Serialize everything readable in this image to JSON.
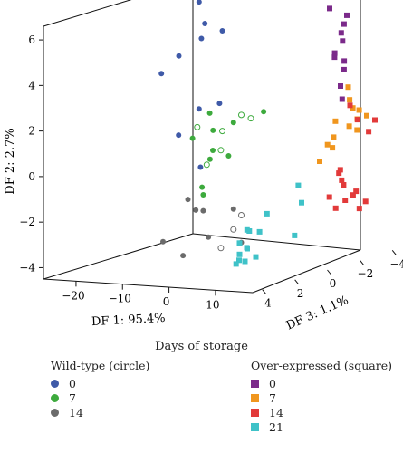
{
  "chart_data": {
    "type": "scatter3d",
    "axes": {
      "x": {
        "label": "DF 1: 95.4%",
        "ticks": [
          -20,
          -10,
          0,
          10
        ],
        "range": [
          -27,
          18
        ]
      },
      "y": {
        "label": "DF 2: 2.7%",
        "ticks": [
          -4,
          -2,
          0,
          2,
          4,
          6
        ],
        "range": [
          -4.5,
          6.6
        ]
      },
      "z": {
        "label": "DF 3: 1.1%",
        "ticks": [
          4,
          2,
          0,
          -2,
          -4
        ],
        "range": [
          4.6,
          -4.6
        ]
      }
    },
    "legend_title": "Days of storage",
    "groups": [
      {
        "name": "Wild-type (circle)",
        "marker": "circle",
        "entries": [
          {
            "label": "0",
            "color": "#3f5aa8"
          },
          {
            "label": "7",
            "color": "#3daa3d"
          },
          {
            "label": "14",
            "color": "#6b6b6b"
          }
        ]
      },
      {
        "name": "Over-expressed (square)",
        "marker": "square",
        "entries": [
          {
            "label": "0",
            "color": "#7b2a8a"
          },
          {
            "label": "7",
            "color": "#f0961e"
          },
          {
            "label": "14",
            "color": "#e23a3a"
          },
          {
            "label": "21",
            "color": "#3fc2c8"
          }
        ]
      }
    ],
    "series": [
      {
        "group": "Wild-type (circle)",
        "day": "0",
        "marker": "circle",
        "color": "#3f5aa8",
        "points": [
          [
            -11,
            6.8,
            -0.4
          ],
          [
            -10.5,
            5.2,
            -0.4
          ],
          [
            -8,
            6.0,
            0.1
          ],
          [
            -6,
            5.6,
            -0.4
          ],
          [
            -15,
            4.4,
            -0.3
          ],
          [
            -17,
            3.7,
            0.2
          ],
          [
            -11,
            2.1,
            -0.4
          ],
          [
            -8,
            2.3,
            -0.8
          ],
          [
            -14,
            1.0,
            0.0
          ],
          [
            -10,
            -0.4,
            -0.2
          ]
        ]
      },
      {
        "group": "Wild-type (circle)",
        "day": "7",
        "marker": "circle",
        "color": "#3daa3d",
        "points": [
          [
            -8,
            2.0,
            -0.2
          ],
          [
            -11,
            0.9,
            0.0
          ],
          [
            -8,
            1.2,
            -0.4
          ],
          [
            -5,
            1.5,
            -0.8
          ],
          [
            -2,
            1.8,
            -1.8
          ],
          [
            -9,
            -0.1,
            -0.5
          ],
          [
            -7,
            0.4,
            -0.1
          ],
          [
            -5,
            0.1,
            -0.5
          ],
          [
            -10,
            -1.3,
            -0.3
          ],
          [
            -8,
            -1.5,
            0.2
          ]
        ]
      },
      {
        "group": "Wild-type (circle)",
        "day": "7",
        "marker": "circle-open",
        "color": "#3daa3d",
        "points": [
          [
            -10,
            1.4,
            0.0
          ],
          [
            -6,
            1.2,
            -0.4
          ],
          [
            -4,
            1.8,
            -1.0
          ],
          [
            -3,
            1.6,
            -1.3
          ],
          [
            -7,
            0.3,
            -0.6
          ],
          [
            -9,
            -0.3,
            -0.3
          ]
        ]
      },
      {
        "group": "Wild-type (circle)",
        "day": "14",
        "marker": "circle",
        "color": "#6b6b6b",
        "points": [
          [
            -12,
            -1.8,
            0.0
          ],
          [
            -11,
            -2.3,
            -0.2
          ],
          [
            -8,
            -2.2,
            0.2
          ],
          [
            -5,
            -2.3,
            -0.8
          ],
          [
            -9,
            -3.5,
            -0.4
          ],
          [
            -17,
            -3.7,
            0.1
          ],
          [
            -12,
            -4.2,
            0.3
          ],
          [
            -4,
            -3.8,
            -1.0
          ]
        ]
      },
      {
        "group": "Wild-type (circle)",
        "day": "14",
        "marker": "circle-open",
        "color": "#6b6b6b",
        "points": [
          [
            -4,
            -2.6,
            -1.0
          ],
          [
            -5,
            -3.2,
            -0.8
          ],
          [
            -7,
            -4.0,
            -0.6
          ]
        ]
      },
      {
        "group": "Over-expressed (square)",
        "day": "0",
        "marker": "square",
        "color": "#7b2a8a",
        "points": [
          [
            8,
            6.2,
            -3.0
          ],
          [
            11,
            5.9,
            -3.2
          ],
          [
            9,
            5.4,
            -3.6
          ],
          [
            8,
            4.6,
            -3.8
          ],
          [
            8,
            4.0,
            -3.3
          ],
          [
            9,
            3.4,
            -3.6
          ],
          [
            10,
            2.8,
            -3.1
          ],
          [
            10,
            2.2,
            -3.2
          ],
          [
            7,
            4.1,
            -3.6
          ],
          [
            8,
            3.7,
            -3.9
          ],
          [
            7,
            4.9,
            -4.0
          ]
        ]
      },
      {
        "group": "Over-expressed (square)",
        "day": "7",
        "marker": "square",
        "color": "#f0961e",
        "points": [
          [
            12,
            2.8,
            -3.0
          ],
          [
            13,
            2.3,
            -2.8
          ],
          [
            13,
            1.9,
            -3.0
          ],
          [
            15,
            1.5,
            -2.7
          ],
          [
            16,
            1.1,
            -2.4
          ],
          [
            15,
            1.3,
            -2.2
          ],
          [
            11,
            1.4,
            -2.5
          ],
          [
            12,
            0.8,
            -2.1
          ],
          [
            10,
            0.4,
            -2.3
          ],
          [
            9,
            -0.3,
            -2.1
          ],
          [
            10,
            0.2,
            -2.6
          ],
          [
            14,
            1.8,
            -3.1
          ],
          [
            16,
            1.6,
            -3.0
          ]
        ]
      },
      {
        "group": "Over-expressed (square)",
        "day": "14",
        "marker": "square",
        "color": "#e23a3a",
        "points": [
          [
            15,
            0.8,
            -3.4
          ],
          [
            16,
            1.3,
            -3.5
          ],
          [
            14,
            1.4,
            -3.0
          ],
          [
            11,
            1.9,
            -3.4
          ],
          [
            10,
            -1.0,
            -3.0
          ],
          [
            11,
            -0.8,
            -2.8
          ],
          [
            12,
            -1.2,
            -2.6
          ],
          [
            11,
            -1.5,
            -3.0
          ],
          [
            13,
            -1.8,
            -3.2
          ],
          [
            12,
            -2.0,
            -3.3
          ],
          [
            14,
            -2.3,
            -3.5
          ],
          [
            13,
            -2.6,
            -3.4
          ],
          [
            10,
            -2.5,
            -2.8
          ],
          [
            11,
            -2.2,
            -3.1
          ],
          [
            9,
            -2.0,
            -2.7
          ]
        ]
      },
      {
        "group": "Over-expressed (square)",
        "day": "21",
        "marker": "square",
        "color": "#3fc2c8",
        "points": [
          [
            10,
            -1.0,
            -0.5
          ],
          [
            10,
            -1.8,
            -0.7
          ],
          [
            5,
            -2.2,
            0.0
          ],
          [
            7,
            -2.5,
            1.8
          ],
          [
            9,
            -2.6,
            1.6
          ],
          [
            4,
            -2.8,
            0.8
          ],
          [
            4,
            -3.2,
            1.4
          ],
          [
            6,
            -3.4,
            1.5
          ],
          [
            8,
            -3.2,
            2.1
          ],
          [
            9,
            -3.7,
            2.5
          ],
          [
            11,
            -3.5,
            2.4
          ],
          [
            12,
            -3.0,
            0.3
          ],
          [
            4,
            -3.7,
            1.4
          ],
          [
            6,
            -3.8,
            2.0
          ],
          [
            5,
            -4.0,
            1.9
          ]
        ]
      }
    ]
  }
}
